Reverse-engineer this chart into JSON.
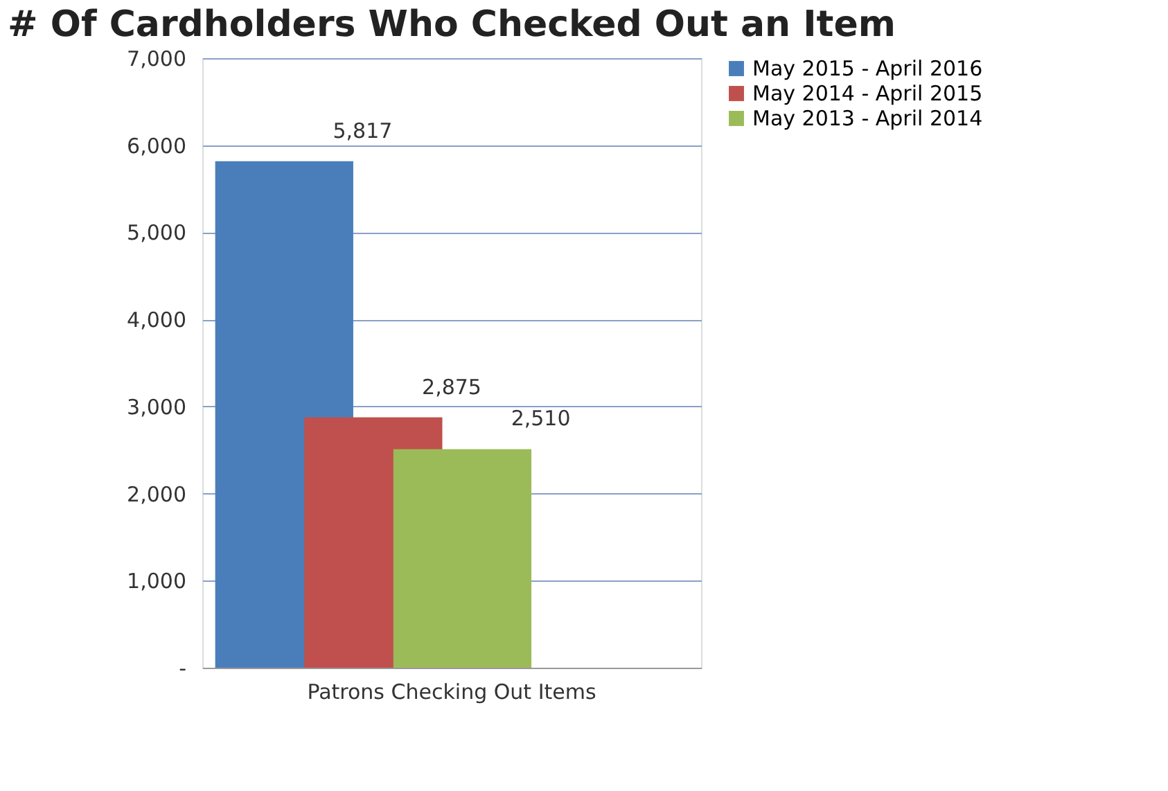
{
  "chart_data": {
    "type": "bar",
    "title": "# Of Cardholders Who Checked Out an Item",
    "categories": [
      "Patrons Checking Out Items"
    ],
    "series": [
      {
        "name": "May 2015 - April 2016",
        "color": "#4a7ebb",
        "values": [
          5817
        ],
        "value_labels": [
          "5,817"
        ]
      },
      {
        "name": "May 2014 - April 2015",
        "color": "#c0504d",
        "values": [
          2875
        ],
        "value_labels": [
          "2,875"
        ]
      },
      {
        "name": "May 2013 - April 2014",
        "color": "#9bbb59",
        "values": [
          2510
        ],
        "value_labels": [
          "2,510"
        ]
      }
    ],
    "ylim": [
      0,
      7000
    ],
    "yticks": [
      {
        "value": 0,
        "label": "-"
      },
      {
        "value": 1000,
        "label": "1,000"
      },
      {
        "value": 2000,
        "label": "2,000"
      },
      {
        "value": 3000,
        "label": "3,000"
      },
      {
        "value": 4000,
        "label": "4,000"
      },
      {
        "value": 5000,
        "label": "5,000"
      },
      {
        "value": 6000,
        "label": "6,000"
      },
      {
        "value": 7000,
        "label": "7,000"
      }
    ],
    "grid": "y",
    "legend": "right"
  }
}
